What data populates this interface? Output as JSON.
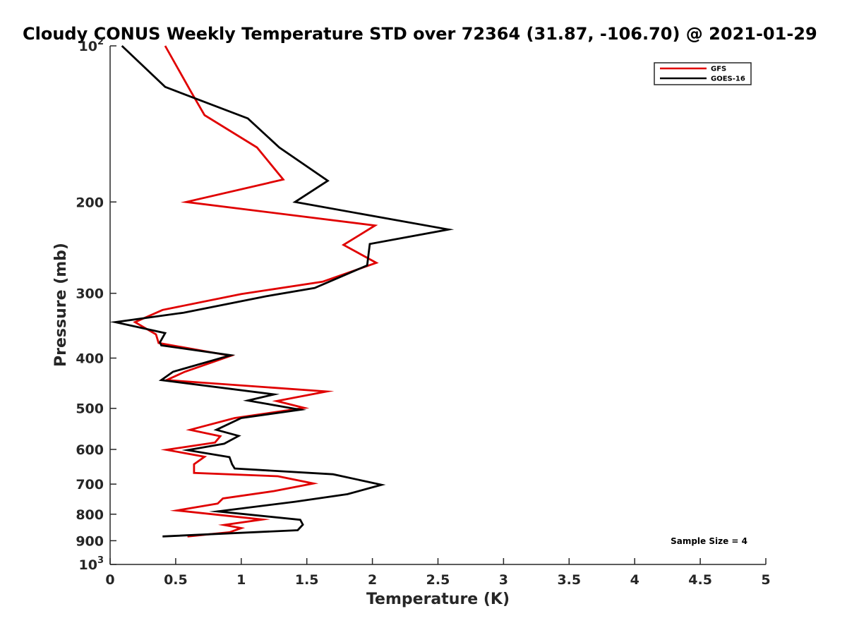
{
  "chart_data": {
    "type": "line",
    "title": "Cloudy CONUS Weekly Temperature STD over 72364 (31.87, -106.70) @ 2021-01-29",
    "xlabel": "Temperature (K)",
    "ylabel": "Pressure (mb)",
    "xlim": [
      0,
      5
    ],
    "ylim": [
      100,
      1000
    ],
    "y_scale": "log",
    "y_reversed": true,
    "xticks": [
      0,
      0.5,
      1,
      1.5,
      2,
      2.5,
      3,
      3.5,
      4,
      4.5,
      5
    ],
    "xtick_labels": [
      "0",
      "0.5",
      "1",
      "1.5",
      "2",
      "2.5",
      "3",
      "3.5",
      "4",
      "4.5",
      "5"
    ],
    "yticks": [
      100,
      200,
      300,
      400,
      500,
      600,
      700,
      800,
      900,
      1000
    ],
    "ytick_labels": [
      {
        "base": "10",
        "exp": "2"
      },
      {
        "base": "200"
      },
      {
        "base": "300"
      },
      {
        "base": "400"
      },
      {
        "base": "500"
      },
      {
        "base": "600"
      },
      {
        "base": "700"
      },
      {
        "base": "800"
      },
      {
        "base": "900"
      },
      {
        "base": "10",
        "exp": "3"
      }
    ],
    "grid": false,
    "legend_position": "top-right",
    "annotation": "Sample Size = 4",
    "series": [
      {
        "name": "GFS",
        "color": "#e00000",
        "points": [
          [
            0.42,
            100
          ],
          [
            0.62,
            123
          ],
          [
            0.72,
            136
          ],
          [
            1.12,
            157
          ],
          [
            1.32,
            181
          ],
          [
            0.58,
            200
          ],
          [
            2.02,
            222
          ],
          [
            1.78,
            242
          ],
          [
            2.03,
            262
          ],
          [
            1.62,
            285
          ],
          [
            1.0,
            301
          ],
          [
            0.4,
            323
          ],
          [
            0.19,
            341
          ],
          [
            0.35,
            360
          ],
          [
            0.37,
            374
          ],
          [
            0.92,
            396
          ],
          [
            0.57,
            425
          ],
          [
            0.43,
            441
          ],
          [
            1.65,
            464
          ],
          [
            1.27,
            484
          ],
          [
            1.48,
            499
          ],
          [
            0.95,
            522
          ],
          [
            0.61,
            550
          ],
          [
            0.84,
            566
          ],
          [
            0.8,
            582
          ],
          [
            0.43,
            601
          ],
          [
            0.72,
            620
          ],
          [
            0.64,
            641
          ],
          [
            0.64,
            666
          ],
          [
            1.28,
            676
          ],
          [
            1.55,
            698
          ],
          [
            1.25,
            722
          ],
          [
            0.86,
            746
          ],
          [
            0.82,
            763
          ],
          [
            0.51,
            787
          ],
          [
            1.16,
            819
          ],
          [
            0.87,
            839
          ],
          [
            1.0,
            851
          ],
          [
            0.91,
            867
          ],
          [
            0.59,
            883
          ]
        ]
      },
      {
        "name": "GOES-16",
        "color": "#000000",
        "points": [
          [
            0.09,
            100
          ],
          [
            0.42,
            120
          ],
          [
            1.05,
            138
          ],
          [
            1.29,
            157
          ],
          [
            1.66,
            182
          ],
          [
            1.41,
            200
          ],
          [
            2.58,
            226
          ],
          [
            1.98,
            241
          ],
          [
            1.96,
            265
          ],
          [
            1.56,
            293
          ],
          [
            1.19,
            304
          ],
          [
            0.56,
            327
          ],
          [
            0.04,
            341
          ],
          [
            0.42,
            358
          ],
          [
            0.38,
            373
          ],
          [
            0.39,
            378
          ],
          [
            0.92,
            395
          ],
          [
            0.48,
            425
          ],
          [
            0.39,
            441
          ],
          [
            1.25,
            470
          ],
          [
            1.05,
            483
          ],
          [
            1.45,
            503
          ],
          [
            1.0,
            522
          ],
          [
            0.81,
            550
          ],
          [
            0.98,
            565
          ],
          [
            0.87,
            585
          ],
          [
            0.59,
            602
          ],
          [
            0.91,
            621
          ],
          [
            0.93,
            641
          ],
          [
            0.95,
            653
          ],
          [
            1.7,
            670
          ],
          [
            2.07,
            702
          ],
          [
            1.81,
            732
          ],
          [
            1.41,
            757
          ],
          [
            0.82,
            790
          ],
          [
            1.45,
            820
          ],
          [
            1.47,
            838
          ],
          [
            1.43,
            859
          ],
          [
            0.4,
            883
          ]
        ]
      }
    ]
  }
}
